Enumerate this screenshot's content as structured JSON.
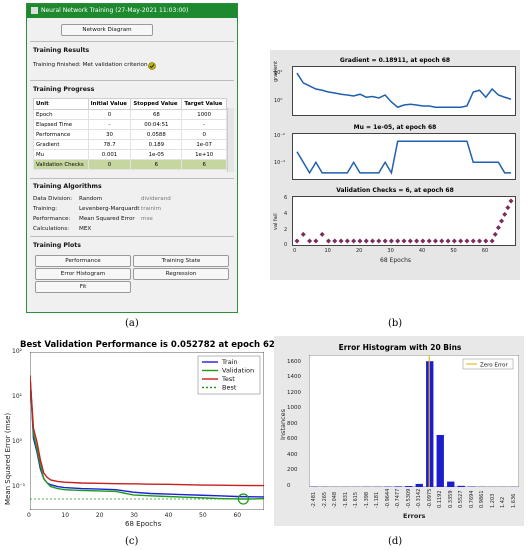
{
  "panel_a": {
    "window_title": "Neural Network Training (27-May-2021 11:03:00)",
    "network_diagram_button": "Network Diagram",
    "training_results_title": "Training Results",
    "training_finished_text": "Training finished: Met validation criterion",
    "training_progress_title": "Training Progress",
    "table_headers": [
      "Unit",
      "Initial Value",
      "Stopped Value",
      "Target Value"
    ],
    "table_rows": [
      [
        "Epoch",
        "0",
        "68",
        "1000"
      ],
      [
        "Elapsed Time",
        "-",
        "00:04:51",
        "-"
      ],
      [
        "Performance",
        "30",
        "0.0588",
        "0"
      ],
      [
        "Gradient",
        "78.7",
        "0.189",
        "1e-07"
      ],
      [
        "Mu",
        "0.001",
        "1e-05",
        "1e+10"
      ],
      [
        "Validation Checks",
        "0",
        "6",
        "6"
      ]
    ],
    "algorithms_title": "Training Algorithms",
    "algorithms": [
      {
        "label": "Data Division:",
        "value": "Random",
        "fn": "dividerand"
      },
      {
        "label": "Training:",
        "value": "Levenberg-Marquardt",
        "fn": "trainlm"
      },
      {
        "label": "Performance:",
        "value": "Mean Squared Error",
        "fn": "mse"
      },
      {
        "label": "Calculations:",
        "value": "MEX",
        "fn": ""
      }
    ],
    "plots_title": "Training Plots",
    "plot_buttons": [
      "Performance",
      "Training State",
      "Error Histogram",
      "Regression",
      "Fit"
    ],
    "caption": "(a)"
  },
  "panel_b": {
    "caption": "(b)",
    "gradient_title": "Gradient = 0.18911, at epoch 68",
    "gradient_ylabel": "gradient",
    "gradient_ticks": [
      "10²",
      "10⁰"
    ],
    "mu_title": "Mu = 1e-05, at epoch 68",
    "mu_ylabel": "mu",
    "mu_ticks": [
      "10⁻²",
      "10⁻⁴"
    ],
    "val_title": "Validation Checks = 6, at epoch 68",
    "val_ylabel": "val fail",
    "val_yticks": [
      "6",
      "4",
      "2",
      "0"
    ],
    "val_xticks": [
      "0",
      "10",
      "20",
      "30",
      "40",
      "50",
      "60"
    ],
    "xlabel": "68 Epochs"
  },
  "panel_c": {
    "caption": "(c)",
    "title": "Best Validation Performance is 0.052782 at epoch 62",
    "ylabel": "Mean Squared Error  (mse)",
    "xlabel": "68 Epochs",
    "yticks": [
      "10²",
      "10¹",
      "10⁰",
      "10⁻¹"
    ],
    "xticks": [
      "0",
      "10",
      "20",
      "30",
      "40",
      "50",
      "60"
    ],
    "legend": [
      "Train",
      "Validation",
      "Test",
      "Best"
    ],
    "colors": {
      "train": "#1f1fd6",
      "validation": "#1a9a1a",
      "test": "#c81e1e",
      "best": "#1a9a1a"
    }
  },
  "panel_d": {
    "caption": "(d)",
    "title": "Error Histogram with 20 Bins",
    "ylabel": "Instances",
    "xlabel": "Errors",
    "legend": "Zero Error",
    "yticks": [
      "1600",
      "1400",
      "1200",
      "1000",
      "800",
      "600",
      "400",
      "200",
      "0"
    ],
    "bar_color": "#1d1dcc",
    "zero_color": "#e0c020"
  },
  "chart_data": [
    {
      "type": "line",
      "title": "Gradient = 0.18911, at epoch 68",
      "ylabel": "gradient",
      "scale": "log",
      "x": [
        0,
        2,
        4,
        6,
        8,
        10,
        12,
        14,
        16,
        18,
        20,
        22,
        24,
        26,
        28,
        30,
        32,
        34,
        36,
        38,
        40,
        42,
        44,
        46,
        48,
        50,
        52,
        54,
        56,
        58,
        60,
        62,
        64,
        66,
        68
      ],
      "y": [
        78.7,
        8,
        4,
        2,
        1.5,
        1,
        0.8,
        0.6,
        0.5,
        0.4,
        0.6,
        0.3,
        0.35,
        0.25,
        0.5,
        0.1,
        0.03,
        0.05,
        0.06,
        0.05,
        0.04,
        0.04,
        0.03,
        0.03,
        0.03,
        0.03,
        0.03,
        0.04,
        1,
        1.5,
        0.3,
        2,
        0.5,
        0.3,
        0.189
      ]
    },
    {
      "type": "line",
      "title": "Mu = 1e-05, at epoch 68",
      "ylabel": "mu",
      "scale": "log",
      "x": [
        0,
        2,
        4,
        6,
        8,
        10,
        12,
        14,
        16,
        18,
        20,
        22,
        24,
        26,
        28,
        30,
        32,
        34,
        36,
        38,
        40,
        42,
        44,
        46,
        48,
        50,
        52,
        54,
        56,
        58,
        60,
        62,
        64,
        66,
        68
      ],
      "y": [
        0.001,
        0.0001,
        1e-05,
        0.0001,
        1e-05,
        1e-05,
        1e-05,
        1e-05,
        1e-05,
        0.0001,
        1e-05,
        1e-05,
        1e-05,
        1e-05,
        0.0001,
        1e-05,
        0.01,
        0.01,
        0.01,
        0.01,
        0.01,
        0.01,
        0.01,
        0.01,
        0.01,
        0.01,
        0.01,
        0.01,
        0.0001,
        0.0001,
        0.0001,
        0.0001,
        0.0001,
        1e-05,
        1e-05
      ]
    },
    {
      "type": "scatter",
      "title": "Validation Checks = 6, at epoch 68",
      "ylabel": "val fail",
      "xlabel": "68 Epochs",
      "x": [
        0,
        1,
        2,
        3,
        4,
        5,
        6,
        7,
        8,
        9,
        10,
        11,
        12,
        13,
        14,
        15,
        16,
        17,
        18,
        19,
        20,
        21,
        22,
        23,
        24,
        25,
        26,
        27,
        28,
        29,
        30,
        31,
        32,
        33,
        34,
        35,
        36,
        37,
        38,
        39,
        40,
        41,
        42,
        43,
        44,
        45,
        46,
        47,
        48,
        49,
        50,
        51,
        52,
        53,
        54,
        55,
        56,
        57,
        58,
        59,
        60,
        61,
        62,
        63,
        64,
        65,
        66,
        67,
        68
      ],
      "y": [
        0,
        0,
        1,
        0,
        0,
        1,
        0,
        0,
        1,
        0,
        0,
        0,
        0,
        0,
        0,
        0,
        0,
        0,
        0,
        0,
        0,
        0,
        0,
        1,
        0,
        0,
        0,
        0,
        0,
        0,
        0,
        0,
        0,
        0,
        0,
        0,
        0,
        0,
        0,
        0,
        0,
        0,
        0,
        0,
        0,
        0,
        0,
        0,
        0,
        0,
        0,
        0,
        0,
        0,
        0,
        0,
        0,
        0,
        0,
        0,
        0,
        0,
        0,
        1,
        2,
        3,
        4,
        5,
        6
      ],
      "ylim": [
        0,
        6
      ],
      "xlim": [
        0,
        68
      ]
    },
    {
      "type": "line",
      "title": "Best Validation Performance is 0.052782 at epoch 62",
      "xlabel": "68 Epochs",
      "ylabel": "Mean Squared Error  (mse)",
      "scale": "log",
      "xlim": [
        0,
        68
      ],
      "ylim": [
        0.03,
        100
      ],
      "series": [
        {
          "name": "Train",
          "x": [
            0,
            1,
            2,
            3,
            4,
            5,
            6,
            8,
            10,
            15,
            20,
            25,
            30,
            35,
            40,
            45,
            50,
            55,
            60,
            65,
            68
          ],
          "values": [
            30,
            1.2,
            0.6,
            0.25,
            0.15,
            0.12,
            0.11,
            0.1,
            0.095,
            0.09,
            0.088,
            0.085,
            0.075,
            0.07,
            0.068,
            0.066,
            0.064,
            0.062,
            0.06,
            0.059,
            0.0588
          ]
        },
        {
          "name": "Validation",
          "x": [
            0,
            1,
            2,
            3,
            4,
            5,
            6,
            8,
            10,
            15,
            20,
            25,
            30,
            35,
            40,
            45,
            50,
            55,
            60,
            62,
            65,
            68
          ],
          "values": [
            30,
            1.5,
            0.7,
            0.3,
            0.15,
            0.12,
            0.1,
            0.09,
            0.085,
            0.082,
            0.08,
            0.078,
            0.065,
            0.062,
            0.06,
            0.058,
            0.056,
            0.054,
            0.053,
            0.0528,
            0.053,
            0.054
          ]
        },
        {
          "name": "Test",
          "x": [
            0,
            1,
            2,
            3,
            4,
            5,
            6,
            8,
            10,
            15,
            20,
            25,
            30,
            35,
            40,
            45,
            50,
            55,
            60,
            65,
            68
          ],
          "values": [
            30,
            2,
            1,
            0.4,
            0.2,
            0.16,
            0.14,
            0.13,
            0.125,
            0.12,
            0.118,
            0.116,
            0.115,
            0.113,
            0.112,
            0.11,
            0.108,
            0.107,
            0.106,
            0.105,
            0.105
          ]
        },
        {
          "name": "Best",
          "x": [
            0,
            68
          ],
          "values": [
            0.052782,
            0.052782
          ]
        }
      ],
      "best_point": {
        "epoch": 62,
        "value": 0.052782
      }
    },
    {
      "type": "bar",
      "title": "Error Histogram with 20 Bins",
      "xlabel": "Errors",
      "ylabel": "Instances",
      "categories": [
        "-2.481",
        "-2.265",
        "-2.048",
        "-1.831",
        "-1.615",
        "-1.398",
        "-1.181",
        "-0.9644",
        "-0.7477",
        "-0.5309",
        "-0.3142",
        "-0.0975",
        "0.1192",
        "0.3359",
        "0.5527",
        "0.7694",
        "0.9861",
        "1.203",
        "1.42",
        "1.636"
      ],
      "values": [
        5,
        3,
        2,
        2,
        2,
        3,
        3,
        5,
        8,
        12,
        40,
        1620,
        670,
        70,
        15,
        6,
        3,
        2,
        2,
        2
      ],
      "ylim": [
        0,
        1700
      ],
      "zero_error": 0
    }
  ]
}
